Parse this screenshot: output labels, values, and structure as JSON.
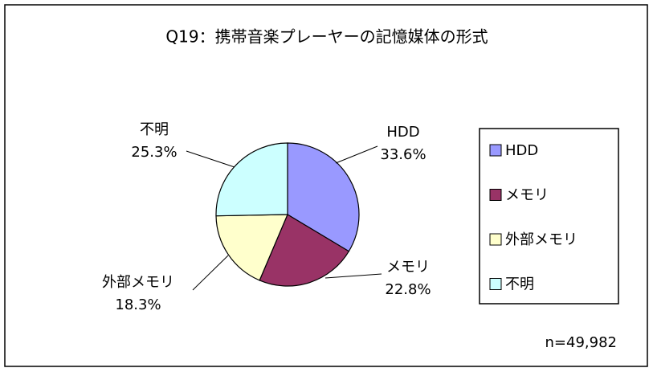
{
  "chart_data": {
    "type": "pie",
    "title": "Q19：携帯音楽プレーヤーの記憶媒体の形式",
    "categories": [
      "HDD",
      "メモリ",
      "外部メモリ",
      "不明"
    ],
    "values": [
      33.6,
      22.8,
      18.3,
      25.3
    ],
    "value_labels": [
      "33.6%",
      "22.8%",
      "18.3%",
      "25.3%"
    ],
    "colors": [
      "#9999ff",
      "#993366",
      "#ffffcc",
      "#ccffff"
    ],
    "legend": "right",
    "annotation": "n=49,982"
  }
}
